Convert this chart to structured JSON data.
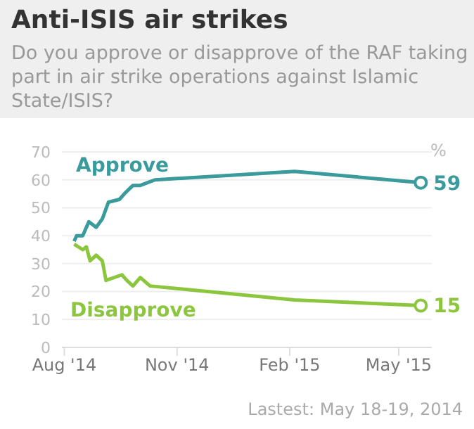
{
  "chart_data": {
    "type": "line",
    "title": "Anti-ISIS air strikes",
    "subtitle": "Do you approve or disapprove of the RAF taking part in air strike operations against Islamic State/ISIS?",
    "ylabel": "%",
    "xlim": [
      "2014-07-30",
      "2015-05-28"
    ],
    "xticks": [
      {
        "value": "2014-08-01",
        "label": "Aug '14"
      },
      {
        "value": "2014-11-01",
        "label": "Nov '14"
      },
      {
        "value": "2015-02-01",
        "label": "Feb '15"
      },
      {
        "value": "2015-05-01",
        "label": "May '15"
      }
    ],
    "ylim": [
      0,
      70
    ],
    "yticks": [
      0,
      10,
      20,
      30,
      40,
      50,
      60,
      70
    ],
    "grid": "y",
    "marker": "none",
    "line_style": "solid",
    "series": [
      {
        "name": "Approve",
        "color": "#3a9a9c",
        "x": [
          "2014-08-09",
          "2014-08-11",
          "2014-08-16",
          "2014-08-21",
          "2014-08-27",
          "2014-09-01",
          "2014-09-06",
          "2014-09-15",
          "2014-09-19",
          "2014-09-26",
          "2014-10-02",
          "2014-10-14",
          "2015-02-05",
          "2015-05-19"
        ],
        "values": [
          38,
          40,
          40,
          45,
          43,
          46,
          52,
          53,
          55,
          58,
          58,
          60,
          63,
          59
        ],
        "value_labels": [
          null,
          null,
          null,
          null,
          null,
          null,
          null,
          null,
          null,
          null,
          null,
          null,
          null,
          "59"
        ]
      },
      {
        "name": "Disapprove",
        "color": "#8cc63f",
        "x": [
          "2014-08-09",
          "2014-08-16",
          "2014-08-19",
          "2014-08-22",
          "2014-08-27",
          "2014-09-01",
          "2014-09-04",
          "2014-09-17",
          "2014-09-21",
          "2014-09-26",
          "2014-10-02",
          "2014-10-10",
          "2015-02-05",
          "2015-05-19"
        ],
        "values": [
          37,
          35,
          36,
          31,
          33,
          31,
          24,
          26,
          24,
          22,
          25,
          22,
          17,
          15
        ],
        "value_labels": [
          null,
          null,
          null,
          null,
          null,
          null,
          null,
          null,
          null,
          null,
          null,
          null,
          null,
          "15"
        ]
      }
    ],
    "annotations": [
      "Lastest: May 18-19, 2014"
    ]
  }
}
